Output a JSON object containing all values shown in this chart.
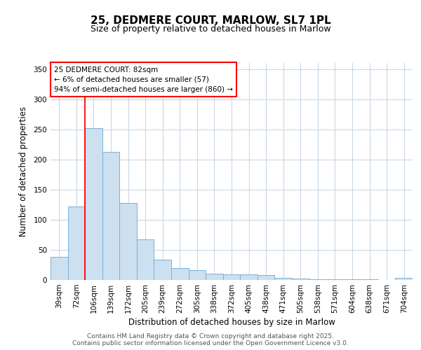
{
  "title": "25, DEDMERE COURT, MARLOW, SL7 1PL",
  "subtitle": "Size of property relative to detached houses in Marlow",
  "xlabel": "Distribution of detached houses by size in Marlow",
  "ylabel": "Number of detached properties",
  "categories": [
    "39sqm",
    "72sqm",
    "106sqm",
    "139sqm",
    "172sqm",
    "205sqm",
    "239sqm",
    "272sqm",
    "305sqm",
    "338sqm",
    "372sqm",
    "405sqm",
    "438sqm",
    "471sqm",
    "505sqm",
    "538sqm",
    "571sqm",
    "604sqm",
    "638sqm",
    "671sqm",
    "704sqm"
  ],
  "values": [
    38,
    122,
    252,
    213,
    128,
    67,
    34,
    20,
    16,
    11,
    9,
    9,
    8,
    4,
    2,
    1,
    1,
    1,
    1,
    0,
    3
  ],
  "bar_color": "#cce0f0",
  "bar_edge_color": "#7ab0d8",
  "red_line_x": 1.5,
  "annotation_line1": "25 DEDMERE COURT: 82sqm",
  "annotation_line2": "← 6% of detached houses are smaller (57)",
  "annotation_line3": "94% of semi-detached houses are larger (860) →",
  "annotation_box_facecolor": "white",
  "annotation_box_edgecolor": "red",
  "ylim": [
    0,
    360
  ],
  "yticks": [
    0,
    50,
    100,
    150,
    200,
    250,
    300,
    350
  ],
  "footer_text": "Contains HM Land Registry data © Crown copyright and database right 2025.\nContains public sector information licensed under the Open Government Licence v3.0.",
  "background_color": "#ffffff",
  "plot_bg_color": "#ffffff",
  "grid_color": "#c8d8e8",
  "title_fontsize": 11,
  "subtitle_fontsize": 9,
  "axis_label_fontsize": 8.5,
  "tick_fontsize": 7.5,
  "footer_fontsize": 6.5
}
